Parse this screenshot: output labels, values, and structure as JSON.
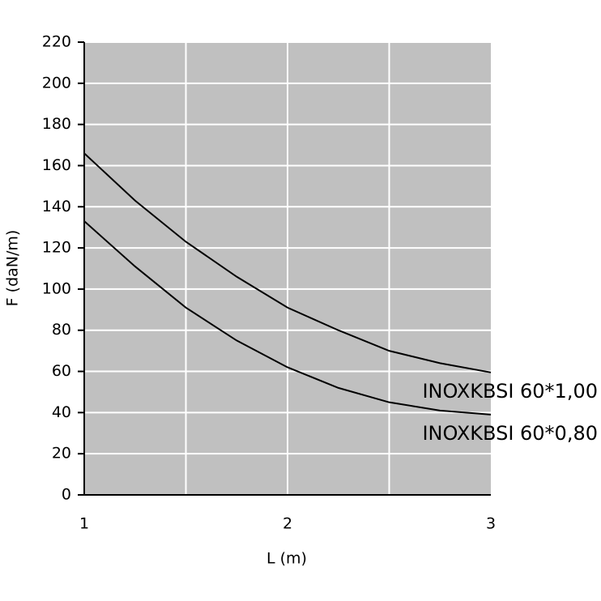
{
  "chart_data": {
    "type": "line",
    "x_label": "L (m)",
    "y_label": "F (daN/m)",
    "x": [
      1,
      1.25,
      1.5,
      1.75,
      2,
      2.25,
      2.5,
      2.75,
      3
    ],
    "series": [
      {
        "name": "INOXKBSI 60*1,00",
        "color": "#000000",
        "values": [
          166,
          143,
          123,
          106,
          91,
          80,
          70,
          64,
          59.5
        ]
      },
      {
        "name": "INOXKBSI 60*0,80",
        "color": "#000000",
        "values": [
          133,
          111,
          91,
          75,
          62,
          52,
          45,
          41,
          39
        ]
      }
    ],
    "xlim": [
      1,
      3
    ],
    "xticks": [
      1,
      2,
      3
    ],
    "xgrid": [
      1.5,
      2,
      2.5
    ],
    "ylim": [
      0,
      220
    ],
    "yticks": [
      0,
      20,
      40,
      60,
      80,
      100,
      120,
      140,
      160,
      180,
      200,
      220
    ],
    "grid": true,
    "plot_background": "#c0c0c0",
    "grid_color": "#ffffff"
  }
}
